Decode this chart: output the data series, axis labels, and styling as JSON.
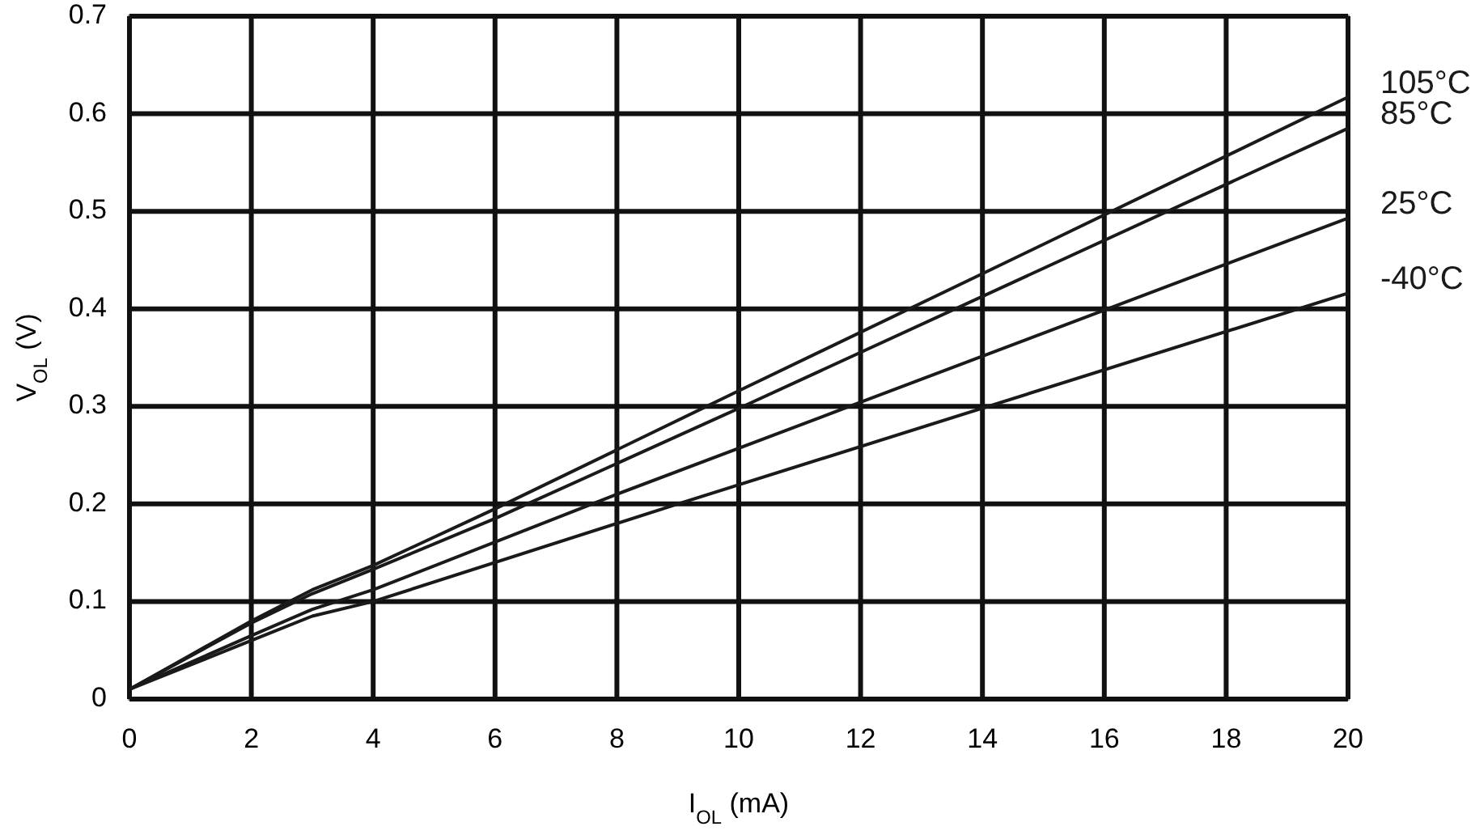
{
  "chart_data": {
    "type": "line",
    "xlabel": "I$_{OL}$ (mA)",
    "ylabel": "V$_{OL}$ (V)",
    "xlim": [
      0,
      20
    ],
    "xticks": [
      0,
      2,
      4,
      6,
      8,
      10,
      12,
      14,
      16,
      18,
      20
    ],
    "ylim": [
      0,
      0.7
    ],
    "yticks": [
      0,
      0.1,
      0.2,
      0.3,
      0.4,
      0.5,
      0.6,
      0.7
    ],
    "grid": true,
    "legend": false,
    "marker": "none",
    "line_style": "solid",
    "series": [
      {
        "name": "105°C",
        "color": "#1a1a1a",
        "x": [
          0,
          1,
          2,
          3,
          4,
          6,
          10,
          14,
          20
        ],
        "values": [
          0.01,
          0.045,
          0.08,
          0.112,
          0.137,
          0.195,
          0.316,
          0.436,
          0.617
        ]
      },
      {
        "name": "85°C",
        "color": "#1a1a1a",
        "x": [
          0,
          2,
          3,
          4,
          6,
          10,
          20
        ],
        "values": [
          0.01,
          0.078,
          0.108,
          0.133,
          0.185,
          0.298,
          0.585
        ]
      },
      {
        "name": "25°C",
        "color": "#1a1a1a",
        "x": [
          0,
          2,
          3,
          4,
          8,
          20
        ],
        "values": [
          0.01,
          0.065,
          0.092,
          0.112,
          0.21,
          0.493
        ]
      },
      {
        "name": "-40°C",
        "color": "#1a1a1a",
        "x": [
          0,
          2,
          3,
          4,
          9,
          20
        ],
        "values": [
          0.01,
          0.06,
          0.085,
          0.1,
          0.2,
          0.416
        ]
      }
    ]
  }
}
